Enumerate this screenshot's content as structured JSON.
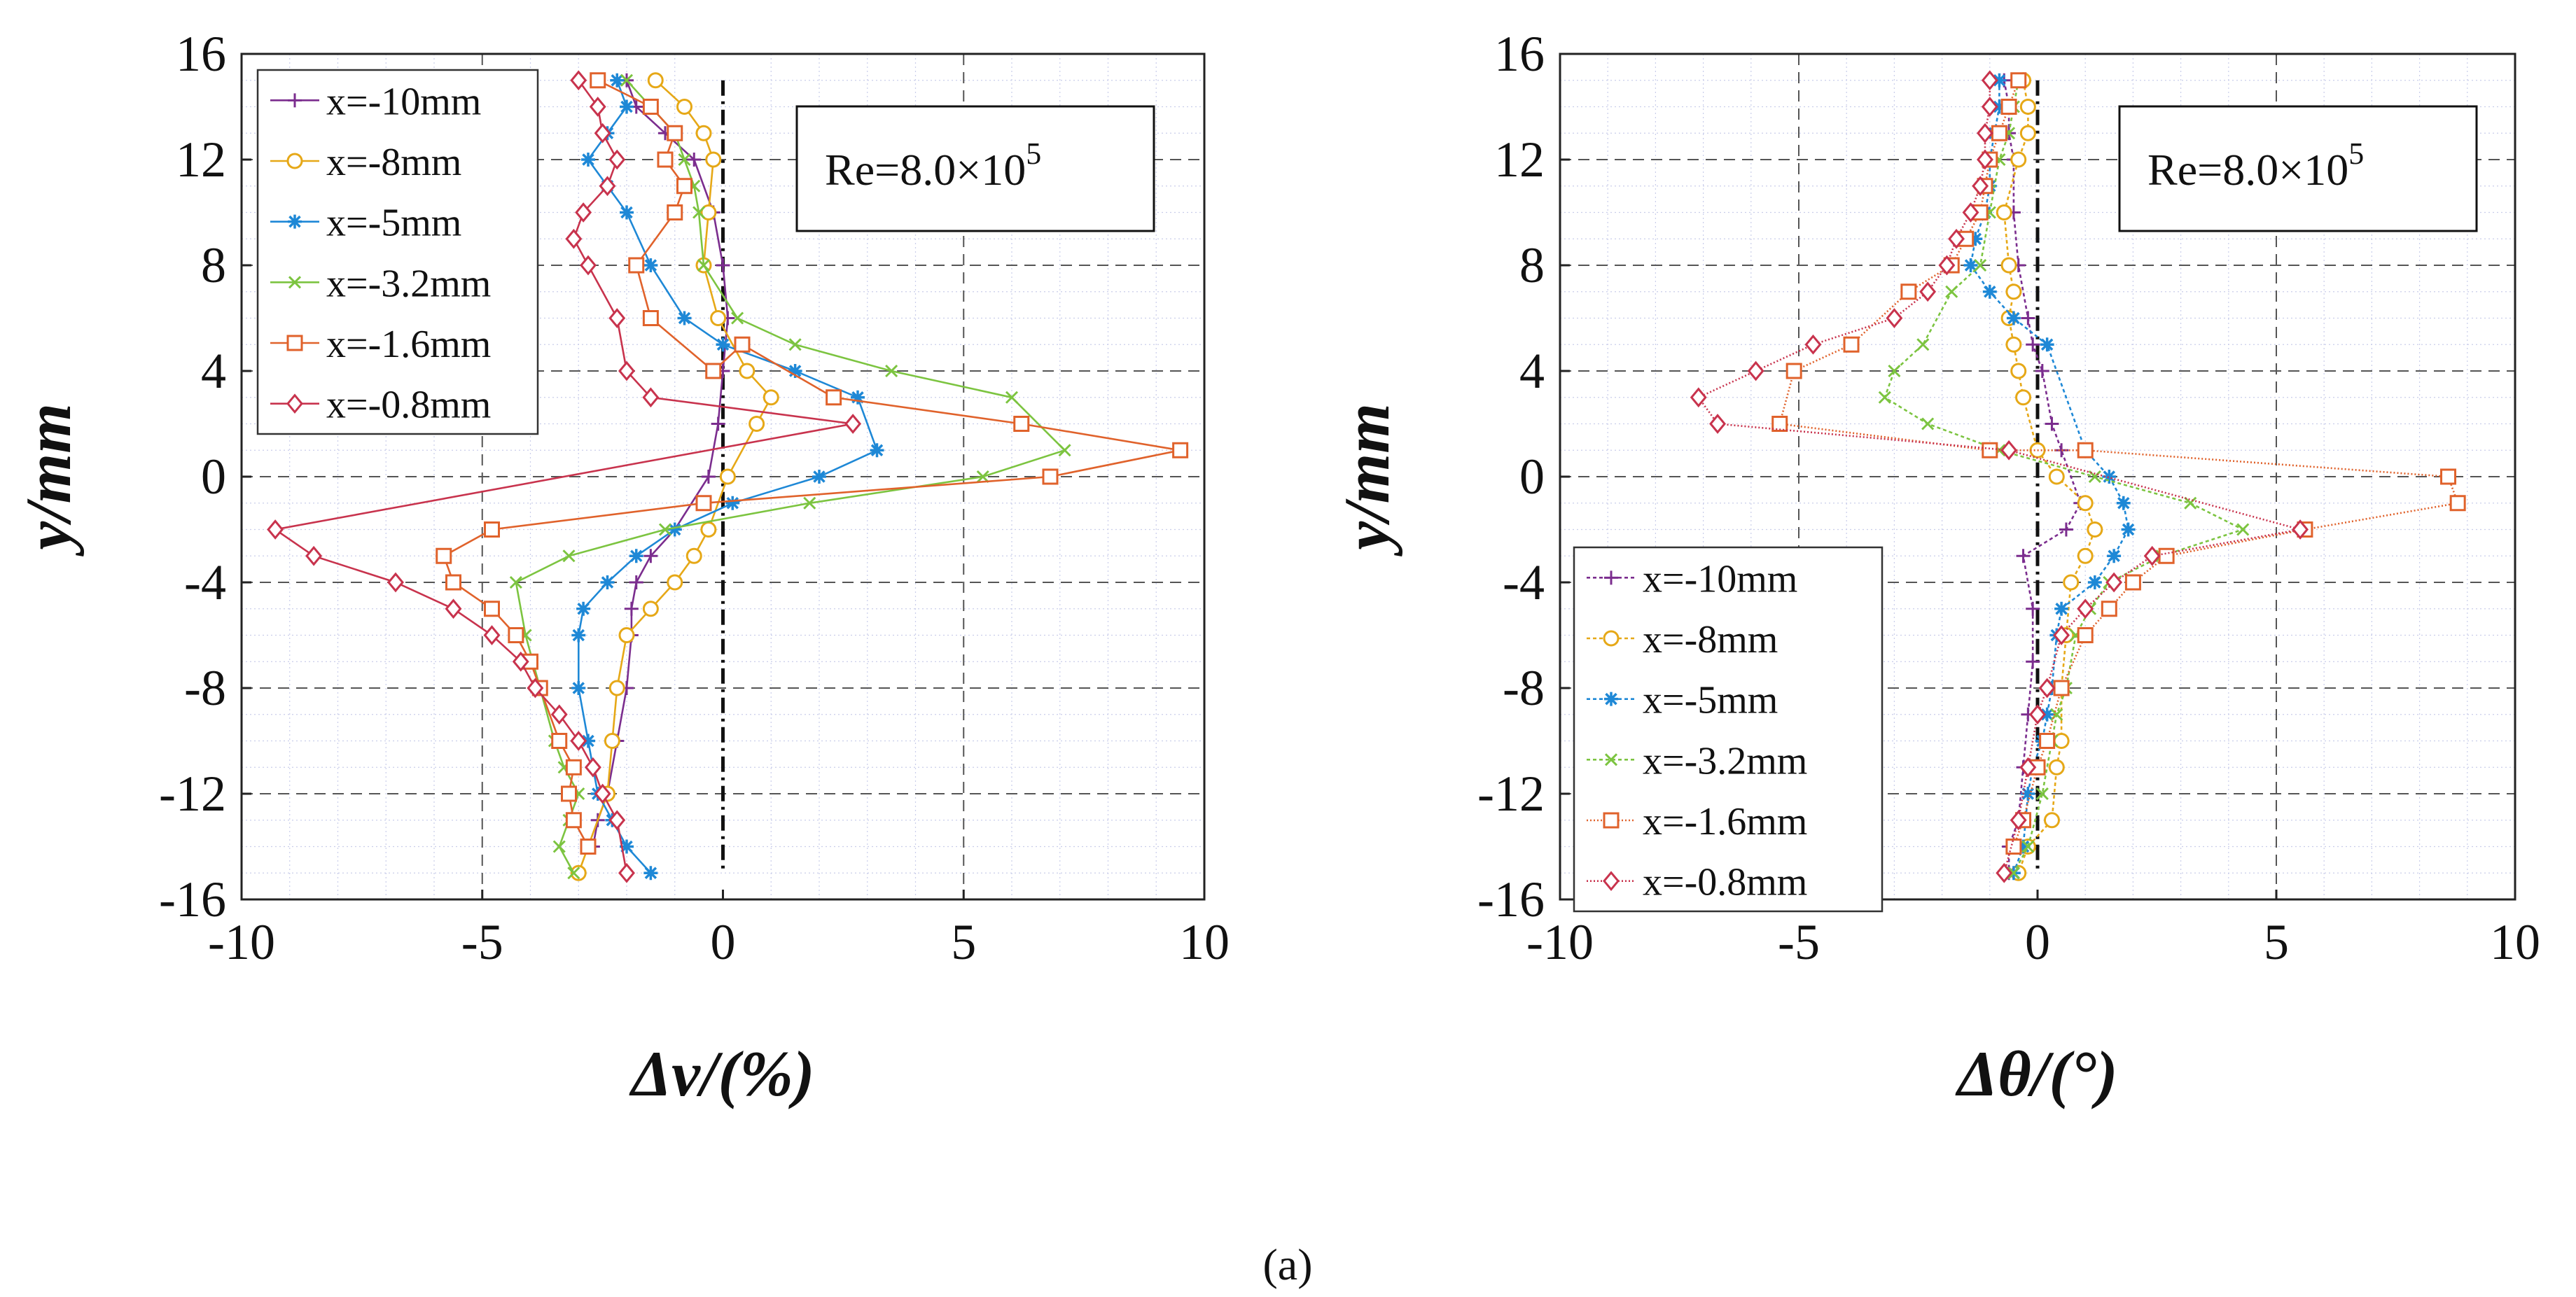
{
  "figure": {
    "caption": "(a)"
  },
  "chart_data": [
    {
      "type": "line",
      "title": "",
      "xlabel": "Δv/(%)",
      "ylabel": "y/mm",
      "xlim": [
        -10,
        10
      ],
      "ylim": [
        -16,
        16
      ],
      "xticks": [
        "-10",
        "-5",
        "0",
        "5",
        "10"
      ],
      "yticks": [
        "16",
        "12",
        "8",
        "4",
        "0",
        "-4",
        "-8",
        "-12",
        "-16"
      ],
      "grid": true,
      "legend_position": "top-left",
      "annotation": {
        "text": "Re=8.0×10",
        "sup": "5",
        "position": "top-right"
      },
      "reference_line_x": 0,
      "series": [
        {
          "name": "x=-10mm",
          "color": "#7b2d8e",
          "marker": "plus",
          "dash": "",
          "x": [
            -2.0,
            -1.8,
            -1.2,
            -0.6,
            -0.2,
            0.0,
            0.1,
            0.0,
            -0.1,
            -0.3,
            -1.0,
            -1.5,
            -1.8,
            -1.9,
            -1.9,
            -2.0,
            -2.2,
            -2.4,
            -2.6,
            -2.7
          ],
          "y": [
            15,
            14,
            13,
            12,
            10,
            8,
            6,
            4,
            2,
            0,
            -2,
            -3,
            -4,
            -5,
            -6,
            -8,
            -10,
            -12,
            -13,
            -14
          ]
        },
        {
          "name": "x=-8mm",
          "color": "#e6a817",
          "marker": "circle",
          "dash": "",
          "x": [
            -1.4,
            -0.8,
            -0.4,
            -0.2,
            -0.3,
            -0.4,
            -0.1,
            0.5,
            1.0,
            0.7,
            0.1,
            -0.3,
            -0.6,
            -1.0,
            -1.5,
            -2.0,
            -2.2,
            -2.3,
            -2.4,
            -2.8,
            -3.0
          ],
          "y": [
            15,
            14,
            13,
            12,
            10,
            8,
            6,
            4,
            3,
            2,
            0,
            -2,
            -3,
            -4,
            -5,
            -6,
            -8,
            -10,
            -12,
            -14,
            -15
          ]
        },
        {
          "name": "x=-5mm",
          "color": "#1e88d6",
          "marker": "star",
          "dash": "",
          "x": [
            -2.2,
            -2.0,
            -2.4,
            -2.8,
            -2.4,
            -2.0,
            -1.5,
            -0.8,
            0.0,
            1.5,
            2.8,
            3.2,
            2.0,
            0.2,
            -1.0,
            -1.8,
            -2.4,
            -2.9,
            -3.0,
            -3.0,
            -2.8,
            -2.6,
            -2.3,
            -2.0,
            -1.5
          ],
          "y": [
            15,
            14,
            13,
            12,
            11,
            10,
            8,
            6,
            5,
            4,
            3,
            1,
            0,
            -1,
            -2,
            -3,
            -4,
            -5,
            -6,
            -8,
            -10,
            -12,
            -13,
            -14,
            -15
          ]
        },
        {
          "name": "x=-3.2mm",
          "color": "#7cc440",
          "marker": "cross",
          "dash": "",
          "x": [
            -2.0,
            -1.5,
            -1.0,
            -0.8,
            -0.6,
            -0.5,
            -0.4,
            0.3,
            1.5,
            3.5,
            6.0,
            7.1,
            5.4,
            1.8,
            -1.2,
            -3.2,
            -4.3,
            -4.1,
            -3.8,
            -3.5,
            -3.3,
            -3.0,
            -3.2,
            -3.4,
            -3.1
          ],
          "y": [
            15,
            14,
            13,
            12,
            11,
            10,
            8,
            6,
            5,
            4,
            3,
            1,
            0,
            -1,
            -2,
            -3,
            -4,
            -6,
            -8,
            -10,
            -11,
            -12,
            -13,
            -14,
            -15
          ]
        },
        {
          "name": "x=-1.6mm",
          "color": "#e0622b",
          "marker": "square",
          "dash": "",
          "x": [
            -2.6,
            -1.5,
            -1.0,
            -1.2,
            -0.8,
            -1.0,
            -1.8,
            -1.5,
            -0.2,
            0.4,
            2.3,
            6.2,
            9.5,
            6.8,
            -0.4,
            -4.8,
            -5.8,
            -5.6,
            -4.8,
            -4.3,
            -4.0,
            -3.8,
            -3.4,
            -3.1,
            -3.2,
            -3.1,
            -2.8
          ],
          "y": [
            15,
            14,
            13,
            12,
            11,
            10,
            8,
            6,
            4,
            5,
            3,
            2,
            1,
            0,
            -1,
            -2,
            -3,
            -4,
            -5,
            -6,
            -7,
            -8,
            -10,
            -11,
            -12,
            -13,
            -14
          ]
        },
        {
          "name": "x=-0.8mm",
          "color": "#c8334d",
          "marker": "diamond",
          "dash": "",
          "x": [
            -3.0,
            -2.6,
            -2.5,
            -2.2,
            -2.4,
            -2.9,
            -3.1,
            -2.8,
            -2.2,
            -2.0,
            -1.5,
            2.7,
            -9.3,
            -8.5,
            -6.8,
            -5.6,
            -4.8,
            -4.2,
            -3.9,
            -3.4,
            -3.0,
            -2.7,
            -2.5,
            -2.2,
            -2.0
          ],
          "y": [
            15,
            14,
            13,
            12,
            11,
            10,
            9,
            8,
            6,
            4,
            3,
            2,
            -2,
            -3,
            -4,
            -5,
            -6,
            -7,
            -8,
            -9,
            -10,
            -11,
            -12,
            -13,
            -15
          ]
        }
      ]
    },
    {
      "type": "line",
      "title": "",
      "xlabel": "Δθ/(°)",
      "ylabel": "y/mm",
      "xlim": [
        -10,
        10
      ],
      "ylim": [
        -16,
        16
      ],
      "xticks": [
        "-10",
        "-5",
        "0",
        "5",
        "10"
      ],
      "yticks": [
        "16",
        "12",
        "8",
        "4",
        "0",
        "-4",
        "-8",
        "-12",
        "-16"
      ],
      "grid": true,
      "legend_position": "bottom-left",
      "annotation": {
        "text": "Re=8.0×10",
        "sup": "5",
        "position": "top-right"
      },
      "reference_line_x": 0,
      "series": [
        {
          "name": "x=-10mm",
          "color": "#7b2d8e",
          "marker": "plus",
          "dash": "5,4",
          "x": [
            -0.7,
            -0.6,
            -0.6,
            -0.5,
            -0.5,
            -0.4,
            -0.2,
            -0.1,
            0.1,
            0.3,
            0.5,
            0.9,
            0.6,
            -0.3,
            -0.1,
            -0.1,
            -0.2,
            -0.3,
            -0.4,
            -0.6,
            -0.6
          ],
          "y": [
            15,
            14,
            13,
            12,
            10,
            8,
            6,
            5,
            4,
            2,
            1,
            -1,
            -2,
            -3,
            -5,
            -7,
            -9,
            -11,
            -13,
            -14,
            -15
          ]
        },
        {
          "name": "x=-8mm",
          "color": "#e6a817",
          "marker": "circle",
          "dash": "5,4",
          "x": [
            -0.3,
            -0.2,
            -0.2,
            -0.4,
            -0.7,
            -0.6,
            -0.5,
            -0.6,
            -0.5,
            -0.4,
            -0.3,
            0.0,
            0.4,
            1.0,
            1.2,
            1.0,
            0.7,
            0.6,
            0.5,
            0.5,
            0.4,
            0.3,
            -0.2,
            -0.4
          ],
          "y": [
            15,
            14,
            13,
            12,
            10,
            8,
            7,
            6,
            5,
            4,
            3,
            1,
            0,
            -1,
            -2,
            -3,
            -4,
            -6,
            -8,
            -10,
            -11,
            -13,
            -14,
            -15
          ]
        },
        {
          "name": "x=-5mm",
          "color": "#1e88d6",
          "marker": "star",
          "dash": "5,4",
          "x": [
            -0.8,
            -0.8,
            -0.9,
            -1.0,
            -1.0,
            -1.1,
            -1.3,
            -1.4,
            -1.0,
            -0.5,
            0.2,
            1.0,
            1.5,
            1.8,
            1.9,
            1.6,
            1.2,
            0.5,
            0.4,
            0.3,
            0.2,
            0.1,
            -0.1,
            -0.2,
            -0.3,
            -0.5
          ],
          "y": [
            15,
            14,
            13,
            12,
            11,
            10,
            9,
            8,
            7,
            6,
            5,
            1,
            0,
            -1,
            -2,
            -3,
            -4,
            -5,
            -6,
            -8,
            -9,
            -10,
            -11,
            -12,
            -14,
            -15
          ]
        },
        {
          "name": "x=-3.2mm",
          "color": "#7cc440",
          "marker": "cross",
          "dash": "5,4",
          "x": [
            -0.4,
            -0.5,
            -0.6,
            -0.8,
            -1.0,
            -1.2,
            -1.8,
            -2.4,
            -3.0,
            -3.2,
            -2.3,
            -0.8,
            1.2,
            3.2,
            4.3,
            2.6,
            1.5,
            1.1,
            0.8,
            0.6,
            0.4,
            0.3,
            0.1,
            -0.2,
            -0.5
          ],
          "y": [
            15,
            14,
            13,
            12,
            10,
            8,
            7,
            5,
            4,
            3,
            2,
            1,
            0,
            -1,
            -2,
            -3,
            -4,
            -5,
            -6,
            -8,
            -9,
            -10,
            -12,
            -14,
            -15
          ]
        },
        {
          "name": "x=-1.6mm",
          "color": "#e0622b",
          "marker": "square",
          "dash": "2,3",
          "x": [
            -0.4,
            -0.6,
            -0.8,
            -1.0,
            -1.1,
            -1.2,
            -1.5,
            -1.8,
            -2.7,
            -3.9,
            -5.1,
            -5.4,
            -1.0,
            1.0,
            8.6,
            8.8,
            5.6,
            2.7,
            2.0,
            1.5,
            1.0,
            0.5,
            0.2,
            0.0,
            -0.3,
            -0.5
          ],
          "y": [
            15,
            14,
            13,
            12,
            11,
            10,
            9,
            8,
            7,
            5,
            4,
            2,
            1,
            1,
            0,
            -1,
            -2,
            -3,
            -4,
            -5,
            -6,
            -8,
            -10,
            -11,
            -13,
            -14
          ]
        },
        {
          "name": "x=-0.8mm",
          "color": "#c8334d",
          "marker": "diamond",
          "dash": "2,3",
          "x": [
            -1.0,
            -1.0,
            -1.1,
            -1.1,
            -1.2,
            -1.4,
            -1.7,
            -1.9,
            -2.3,
            -3.0,
            -4.7,
            -5.9,
            -7.1,
            -6.7,
            -0.6,
            5.5,
            2.4,
            1.6,
            1.0,
            0.5,
            0.2,
            0.0,
            -0.2,
            -0.4,
            -0.7
          ],
          "y": [
            15,
            14,
            13,
            12,
            11,
            10,
            9,
            8,
            7,
            6,
            5,
            4,
            3,
            2,
            1,
            -2,
            -3,
            -4,
            -5,
            -6,
            -8,
            -9,
            -11,
            -13,
            -15
          ]
        }
      ]
    }
  ]
}
